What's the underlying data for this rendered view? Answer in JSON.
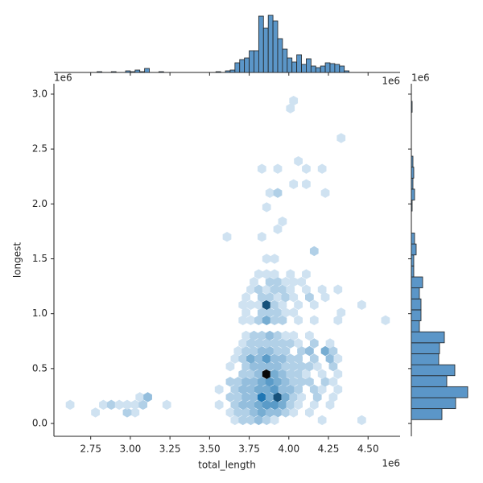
{
  "chart_data": {
    "type": "hexbin",
    "xlabel": "total_length",
    "ylabel": "longest",
    "x_offset_text": "1e6",
    "y_offset_text": "1e6",
    "marginal_x_offset_text": "1e6",
    "marginal_y_offset_text": "1e6",
    "color": "#1f77b4",
    "hist_color": "#5b96c8",
    "xlim": [
      2.518,
      4.702
    ],
    "ylim": [
      -0.117,
      3.095
    ],
    "xticks": [
      2.75,
      {
        "value": 3,
        "label": "3.00"
      },
      3.25,
      {
        "value": 3.5,
        "label": "3.50"
      },
      3.75,
      {
        "value": 4,
        "label": "4.00"
      },
      4.25,
      {
        "value": 4.5,
        "label": "4.50"
      }
    ],
    "yticks": [
      {
        "value": 0,
        "label": "0.0"
      },
      0.5,
      {
        "value": 1,
        "label": "1.0"
      },
      1.5,
      {
        "value": 2,
        "label": "2.0"
      },
      2.5,
      {
        "value": 3,
        "label": "3.0"
      }
    ],
    "hexbin": {
      "rows": [
        {
          "y": 0.1,
          "x": [
            2.78,
            3.03,
            2.98,
            3.63,
            3.68,
            3.73,
            3.78,
            3.83,
            3.88,
            3.93,
            3.98,
            4.03,
            4.13
          ],
          "counts": [
            1,
            1,
            2,
            1,
            2,
            2,
            3,
            4,
            3,
            3,
            2,
            1,
            1
          ]
        },
        {
          "y": 0.17,
          "x": [
            2.62,
            2.83,
            2.88,
            2.93,
            2.98,
            3.03,
            3.08,
            3.23,
            3.56,
            3.66,
            3.71,
            3.76,
            3.81,
            3.86,
            3.91,
            3.96,
            4.01,
            4.06,
            4.16,
            4.26
          ],
          "counts": [
            1,
            1,
            2,
            1,
            1,
            1,
            2,
            1,
            1,
            2,
            3,
            3,
            4,
            5,
            5,
            4,
            2,
            1,
            1,
            1
          ]
        },
        {
          "y": 0.24,
          "x": [
            3.06,
            3.11,
            3.63,
            3.68,
            3.73,
            3.78,
            3.83,
            3.88,
            3.93,
            3.98,
            4.03,
            4.08,
            4.18,
            4.28
          ],
          "counts": [
            1,
            3,
            2,
            2,
            3,
            3,
            7,
            4,
            8,
            4,
            2,
            1,
            2,
            1
          ]
        },
        {
          "y": 0.03,
          "x": [
            3.66,
            3.71,
            3.76,
            3.81,
            3.86,
            3.91,
            4.21,
            4.46
          ],
          "counts": [
            1,
            2,
            2,
            3,
            2,
            1,
            1,
            1
          ]
        },
        {
          "y": 0.31,
          "x": [
            3.56,
            3.66,
            3.71,
            3.76,
            3.81,
            3.86,
            3.91,
            3.96,
            4.01,
            4.06,
            4.16,
            4.21,
            4.31
          ],
          "counts": [
            1,
            2,
            3,
            3,
            4,
            4,
            5,
            3,
            3,
            2,
            2,
            1,
            1
          ]
        },
        {
          "y": 0.38,
          "x": [
            3.63,
            3.68,
            3.73,
            3.78,
            3.83,
            3.88,
            3.93,
            3.98,
            4.03,
            4.08,
            4.13,
            4.23,
            4.28
          ],
          "counts": [
            2,
            2,
            3,
            3,
            4,
            5,
            4,
            3,
            2,
            2,
            2,
            2,
            1
          ]
        },
        {
          "y": 0.45,
          "x": [
            3.71,
            3.76,
            3.81,
            3.86,
            3.91,
            3.96,
            4.01,
            4.06,
            4.11,
            4.21,
            4.31
          ],
          "counts": [
            2,
            2,
            3,
            10,
            4,
            3,
            2,
            2,
            1,
            1,
            1
          ]
        },
        {
          "y": 0.52,
          "x": [
            3.63,
            3.73,
            3.78,
            3.83,
            3.88,
            3.93,
            3.98,
            4.03,
            4.08,
            4.13,
            4.18,
            4.28
          ],
          "counts": [
            1,
            2,
            3,
            3,
            3,
            3,
            2,
            2,
            2,
            2,
            1,
            2
          ]
        },
        {
          "y": 0.59,
          "x": [
            3.66,
            3.71,
            3.76,
            3.81,
            3.86,
            3.91,
            3.96,
            4.01,
            4.06,
            4.16,
            4.26,
            4.31
          ],
          "counts": [
            1,
            2,
            4,
            3,
            5,
            3,
            3,
            2,
            2,
            2,
            3,
            1
          ]
        },
        {
          "y": 0.66,
          "x": [
            3.68,
            3.73,
            3.78,
            3.83,
            3.88,
            3.93,
            3.98,
            4.08,
            4.13,
            4.23,
            4.28
          ],
          "counts": [
            1,
            2,
            2,
            3,
            3,
            2,
            2,
            2,
            3,
            4,
            2
          ]
        },
        {
          "y": 0.73,
          "x": [
            3.71,
            3.76,
            3.81,
            3.86,
            3.91,
            3.96,
            4.01,
            4.06,
            4.16,
            4.26
          ],
          "counts": [
            1,
            2,
            2,
            2,
            2,
            2,
            2,
            1,
            2,
            1
          ]
        },
        {
          "y": 0.8,
          "x": [
            3.73,
            3.78,
            3.83,
            3.88,
            3.93,
            3.98,
            4.03,
            4.13
          ],
          "counts": [
            1,
            2,
            2,
            3,
            2,
            1,
            1,
            1
          ]
        },
        {
          "y": 0.94,
          "x": [
            3.71,
            3.76,
            3.81,
            3.86,
            3.91,
            3.96,
            4.06,
            4.16,
            4.31,
            4.61
          ],
          "counts": [
            1,
            1,
            2,
            4,
            2,
            2,
            1,
            1,
            1,
            1
          ]
        },
        {
          "y": 1.01,
          "x": [
            3.73,
            3.83,
            3.88,
            3.93,
            3.98,
            4.03,
            4.33
          ],
          "counts": [
            1,
            2,
            2,
            2,
            1,
            1,
            1
          ]
        },
        {
          "y": 1.08,
          "x": [
            3.71,
            3.76,
            3.81,
            3.86,
            3.91,
            3.96,
            4.06,
            4.16,
            4.46
          ],
          "counts": [
            1,
            1,
            1,
            8,
            2,
            1,
            1,
            1,
            1
          ]
        },
        {
          "y": 1.15,
          "x": [
            3.73,
            3.83,
            3.88,
            3.93,
            3.98,
            4.03,
            4.13,
            4.23
          ],
          "counts": [
            1,
            2,
            2,
            1,
            2,
            1,
            2,
            1
          ]
        },
        {
          "y": 1.22,
          "x": [
            3.76,
            3.81,
            3.86,
            3.91,
            3.96,
            4.01,
            4.11,
            4.21,
            4.31
          ],
          "counts": [
            1,
            2,
            1,
            2,
            2,
            1,
            1,
            1,
            1
          ]
        },
        {
          "y": 1.29,
          "x": [
            3.78,
            3.88,
            3.93,
            3.98,
            4.03,
            4.08
          ],
          "counts": [
            1,
            2,
            2,
            1,
            1,
            1
          ]
        },
        {
          "y": 1.36,
          "x": [
            3.81,
            3.86,
            3.91,
            4.01,
            4.11
          ],
          "counts": [
            1,
            1,
            1,
            1,
            1
          ]
        },
        {
          "y": 1.5,
          "x": [
            3.86,
            3.91
          ],
          "counts": [
            1,
            1
          ]
        },
        {
          "y": 1.57,
          "x": [
            4.16
          ],
          "counts": [
            2
          ]
        },
        {
          "y": 1.7,
          "x": [
            3.61,
            3.83
          ],
          "counts": [
            1,
            1
          ]
        },
        {
          "y": 1.77,
          "x": [
            3.93
          ],
          "counts": [
            1
          ]
        },
        {
          "y": 1.84,
          "x": [
            3.96
          ],
          "counts": [
            1
          ]
        },
        {
          "y": 1.97,
          "x": [
            3.86
          ],
          "counts": [
            1
          ]
        },
        {
          "y": 2.1,
          "x": [
            3.88,
            3.93,
            4.23
          ],
          "counts": [
            1,
            2,
            1
          ]
        },
        {
          "y": 2.18,
          "x": [
            4.03,
            4.11
          ],
          "counts": [
            1,
            1
          ]
        },
        {
          "y": 2.32,
          "x": [
            3.83,
            3.93,
            4.11,
            4.21
          ],
          "counts": [
            1,
            1,
            1,
            1
          ]
        },
        {
          "y": 2.39,
          "x": [
            4.06
          ],
          "counts": [
            1
          ]
        },
        {
          "y": 2.6,
          "x": [
            4.33
          ],
          "counts": [
            1
          ]
        },
        {
          "y": 2.87,
          "x": [
            4.01
          ],
          "counts": [
            1
          ]
        },
        {
          "y": 2.94,
          "x": [
            4.03
          ],
          "counts": [
            1
          ]
        }
      ]
    },
    "marginal_x": {
      "lim": [
        0,
        72
      ],
      "bins": [
        2.61,
        2.64,
        2.67,
        2.7,
        2.73,
        2.76,
        2.79,
        2.82,
        2.85,
        2.88,
        2.91,
        2.94,
        2.97,
        3.0,
        3.03,
        3.06,
        3.09,
        3.12,
        3.15,
        3.18,
        3.21,
        3.24,
        3.27,
        3.3,
        3.33,
        3.36,
        3.39,
        3.42,
        3.45,
        3.48,
        3.51,
        3.54,
        3.57,
        3.6,
        3.63,
        3.66,
        3.69,
        3.72,
        3.75,
        3.78,
        3.81,
        3.84,
        3.87,
        3.9,
        3.93,
        3.96,
        3.99,
        4.02,
        4.05,
        4.08,
        4.11,
        4.14,
        4.17,
        4.2,
        4.23,
        4.26,
        4.29,
        4.32,
        4.35,
        4.38
      ],
      "counts": [
        0,
        0,
        0,
        0,
        0,
        0,
        1,
        0,
        0,
        1,
        0,
        0,
        2,
        1,
        3,
        1,
        5,
        0,
        0,
        1,
        0,
        0,
        0,
        0,
        0,
        0,
        0,
        0,
        0,
        0,
        0,
        1,
        0,
        2,
        3,
        12,
        16,
        18,
        27,
        27,
        70,
        55,
        71,
        64,
        42,
        29,
        18,
        13,
        22,
        10,
        17,
        8,
        6,
        8,
        12,
        11,
        10,
        8,
        2
      ]
    },
    "marginal_y": {
      "lim": [
        0,
        72
      ],
      "bins": [
        0.035,
        0.135,
        0.235,
        0.335,
        0.435,
        0.535,
        0.635,
        0.735,
        0.835,
        0.935,
        1.035,
        1.135,
        1.235,
        1.335,
        1.435,
        1.535,
        1.635,
        1.735,
        1.835,
        1.935,
        2.035,
        2.135,
        2.235,
        2.335,
        2.435,
        2.535,
        2.635,
        2.735,
        2.835,
        2.935,
        3.035
      ],
      "counts": [
        38,
        55,
        70,
        44,
        54,
        34,
        35,
        41,
        10,
        12,
        12,
        10,
        14,
        3,
        3,
        6,
        4,
        0,
        0,
        1,
        4,
        2,
        3,
        2,
        0,
        0,
        0,
        0,
        1,
        0
      ]
    }
  }
}
